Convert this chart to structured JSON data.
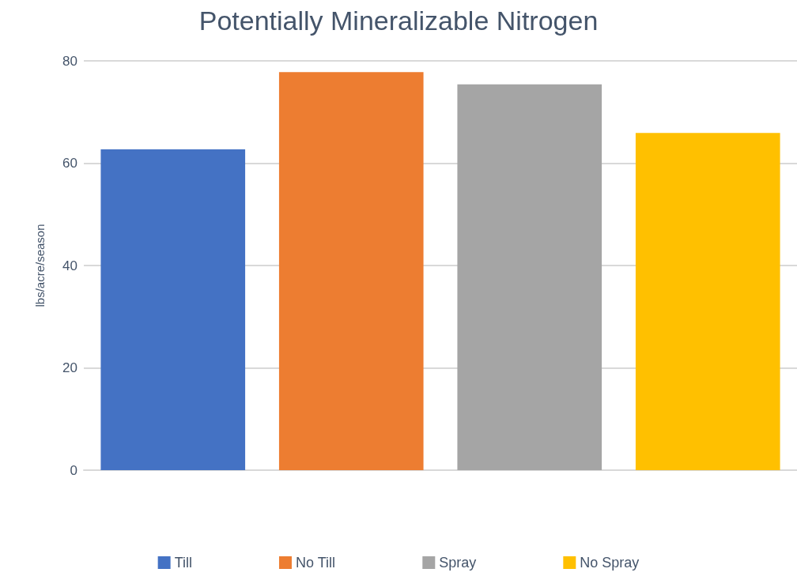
{
  "chart_data": {
    "type": "bar",
    "title": "Potentially Mineralizable Nitrogen",
    "ylabel": "lbs/acre/season",
    "categories": [
      null,
      null,
      null,
      null
    ],
    "series": [
      {
        "name": "Till",
        "color": "#4472c4",
        "values": [
          62.7,
          null,
          null,
          null
        ]
      },
      {
        "name": "No Till",
        "color": "#ed7d31",
        "values": [
          null,
          77.8,
          null,
          null
        ]
      },
      {
        "name": "Spray",
        "color": "#a5a5a5",
        "values": [
          null,
          null,
          75.4,
          null
        ]
      },
      {
        "name": "No Spray",
        "color": "#ffc000",
        "values": [
          null,
          null,
          null,
          65.9
        ]
      }
    ],
    "ylim": [
      0,
      80
    ],
    "yticks": [
      0,
      20,
      40,
      60,
      80
    ],
    "grid": "y",
    "legend": "bottom"
  }
}
